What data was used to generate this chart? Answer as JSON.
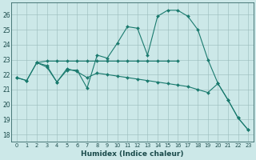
{
  "xlabel": "Humidex (Indice chaleur)",
  "background_color": "#cce8e8",
  "grid_color": "#99bbbb",
  "line_color": "#1a7a6e",
  "xlim": [
    -0.5,
    23.5
  ],
  "ylim": [
    17.5,
    26.8
  ],
  "xticks": [
    0,
    1,
    2,
    3,
    4,
    5,
    6,
    7,
    8,
    9,
    10,
    11,
    12,
    13,
    14,
    15,
    16,
    17,
    18,
    19,
    20,
    21,
    22,
    23
  ],
  "yticks": [
    18,
    19,
    20,
    21,
    22,
    23,
    24,
    25,
    26
  ],
  "series": [
    {
      "x": [
        0,
        1,
        2,
        3,
        4,
        5,
        6,
        7,
        8,
        9,
        10,
        11,
        12,
        13,
        14,
        15,
        16,
        17,
        18,
        19,
        20,
        21,
        22,
        23
      ],
      "y": [
        21.8,
        21.6,
        22.8,
        22.5,
        21.5,
        22.3,
        22.3,
        21.1,
        23.3,
        23.1,
        24.1,
        25.2,
        25.1,
        23.3,
        25.9,
        26.3,
        26.3,
        25.9,
        25.0,
        23.0,
        21.4,
        20.3,
        19.1,
        18.3
      ]
    },
    {
      "x": [
        2,
        3,
        4,
        5,
        6,
        7,
        8,
        9,
        10,
        11,
        12,
        13,
        14,
        15,
        16
      ],
      "y": [
        22.8,
        22.9,
        22.9,
        22.9,
        22.9,
        22.9,
        22.9,
        22.9,
        22.9,
        22.9,
        22.9,
        22.9,
        22.9,
        22.9,
        22.9
      ]
    },
    {
      "x": [
        0,
        1,
        2,
        3,
        4,
        5,
        6,
        7,
        8,
        9,
        10,
        11,
        12,
        13,
        14,
        15,
        16,
        17,
        18,
        19,
        20,
        21,
        22,
        23
      ],
      "y": [
        21.8,
        21.6,
        22.8,
        22.6,
        21.5,
        22.4,
        22.2,
        21.8,
        22.1,
        22.0,
        21.9,
        21.8,
        21.7,
        21.6,
        21.5,
        21.4,
        21.3,
        21.2,
        21.0,
        20.8,
        21.4,
        20.3,
        19.1,
        18.3
      ]
    }
  ]
}
